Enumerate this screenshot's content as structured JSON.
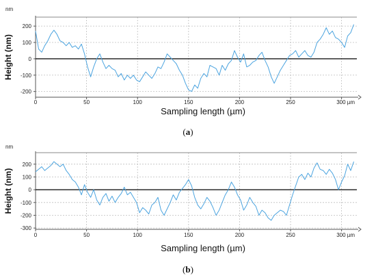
{
  "chart_data": [
    {
      "type": "line",
      "caption_letter": "a",
      "ylabel": "Height (nm)",
      "xlabel": "Sampling length (µm)",
      "y_unit": "nm",
      "x_unit": "µm",
      "xlim": [
        0,
        315
      ],
      "ylim": [
        -235,
        255
      ],
      "x_ticks": [
        0,
        50,
        100,
        150,
        200,
        250,
        300
      ],
      "y_ticks": [
        -200,
        -100,
        0,
        100,
        200
      ],
      "grid": true,
      "zero_line": true,
      "colors": {
        "series": "#4aa3df",
        "zero": "#000000"
      },
      "series": [
        {
          "x": [
            0,
            3,
            6,
            9,
            12,
            15,
            18,
            21,
            24,
            27,
            30,
            33,
            36,
            39,
            42,
            45,
            48,
            51,
            54,
            57,
            60,
            63,
            66,
            69,
            72,
            75,
            78,
            81,
            84,
            87,
            90,
            93,
            96,
            99,
            102,
            105,
            108,
            111,
            114,
            117,
            120,
            123,
            126,
            129,
            132,
            135,
            138,
            141,
            144,
            147,
            150,
            153,
            156,
            159,
            162,
            165,
            168,
            171,
            174,
            177,
            180,
            183,
            186,
            189,
            192,
            195,
            198,
            201,
            204,
            207,
            210,
            213,
            216,
            219,
            222,
            225,
            228,
            231,
            234,
            237,
            240,
            243,
            246,
            249,
            252,
            255,
            258,
            261,
            264,
            267,
            270,
            273,
            276,
            279,
            282,
            285,
            288,
            291,
            294,
            297,
            300,
            303,
            306,
            309,
            312
          ],
          "y": [
            170,
            60,
            40,
            80,
            110,
            150,
            175,
            150,
            110,
            100,
            80,
            100,
            70,
            80,
            60,
            90,
            30,
            -50,
            -110,
            -50,
            0,
            30,
            -20,
            -60,
            -40,
            -60,
            -70,
            -110,
            -90,
            -130,
            -100,
            -120,
            -100,
            -130,
            -140,
            -110,
            -80,
            -100,
            -120,
            -90,
            -50,
            -60,
            -20,
            30,
            10,
            -10,
            -30,
            -70,
            -100,
            -150,
            -190,
            -200,
            -160,
            -180,
            -120,
            -90,
            -110,
            -40,
            -50,
            -60,
            -100,
            -40,
            -70,
            -30,
            -10,
            50,
            10,
            -20,
            30,
            -50,
            -40,
            -20,
            -10,
            20,
            40,
            -10,
            -50,
            -110,
            -150,
            -110,
            -70,
            -40,
            -10,
            20,
            30,
            50,
            10,
            30,
            50,
            20,
            10,
            40,
            100,
            120,
            150,
            190,
            150,
            170,
            130,
            120,
            100,
            70,
            140,
            160,
            210
          ]
        }
      ]
    },
    {
      "type": "line",
      "caption_letter": "b",
      "ylabel": "Height (nm)",
      "xlabel": "Sampling length (µm)",
      "y_unit": "nm",
      "x_unit": "µm",
      "xlim": [
        0,
        315
      ],
      "ylim": [
        -310,
        290
      ],
      "x_ticks": [
        0,
        50,
        100,
        150,
        200,
        250,
        300
      ],
      "y_ticks": [
        -300,
        -200,
        -100,
        0,
        100,
        200
      ],
      "grid": true,
      "zero_line": true,
      "colors": {
        "series": "#4aa3df",
        "zero": "#000000"
      },
      "series": [
        {
          "x": [
            0,
            3,
            6,
            9,
            12,
            15,
            18,
            21,
            24,
            27,
            30,
            33,
            36,
            39,
            42,
            45,
            48,
            51,
            54,
            57,
            60,
            63,
            66,
            69,
            72,
            75,
            78,
            81,
            84,
            87,
            90,
            93,
            96,
            99,
            102,
            105,
            108,
            111,
            114,
            117,
            120,
            123,
            126,
            129,
            132,
            135,
            138,
            141,
            144,
            147,
            150,
            153,
            156,
            159,
            162,
            165,
            168,
            171,
            174,
            177,
            180,
            183,
            186,
            189,
            192,
            195,
            198,
            201,
            204,
            207,
            210,
            213,
            216,
            219,
            222,
            225,
            228,
            231,
            234,
            237,
            240,
            243,
            246,
            249,
            252,
            255,
            258,
            261,
            264,
            267,
            270,
            273,
            276,
            279,
            282,
            285,
            288,
            291,
            294,
            297,
            300,
            303,
            306,
            309,
            312
          ],
          "y": [
            140,
            160,
            180,
            150,
            170,
            190,
            220,
            200,
            180,
            200,
            150,
            120,
            80,
            60,
            20,
            -40,
            40,
            -20,
            -60,
            0,
            -80,
            -120,
            -60,
            -30,
            -90,
            -50,
            -100,
            -60,
            -30,
            20,
            -40,
            -20,
            -60,
            -100,
            -180,
            -140,
            -160,
            -190,
            -120,
            -100,
            -60,
            -160,
            -200,
            -150,
            -100,
            -40,
            -80,
            -20,
            10,
            40,
            80,
            30,
            -60,
            -120,
            -150,
            -110,
            -60,
            -90,
            -140,
            -200,
            -160,
            -100,
            -40,
            0,
            60,
            20,
            -40,
            -80,
            -160,
            -120,
            -60,
            -100,
            -130,
            -200,
            -160,
            -180,
            -220,
            -240,
            -200,
            -180,
            -160,
            -170,
            -200,
            -120,
            -40,
            30,
            100,
            120,
            80,
            130,
            100,
            170,
            210,
            160,
            150,
            120,
            160,
            130,
            80,
            0,
            60,
            110,
            200,
            150,
            220
          ]
        }
      ]
    }
  ]
}
